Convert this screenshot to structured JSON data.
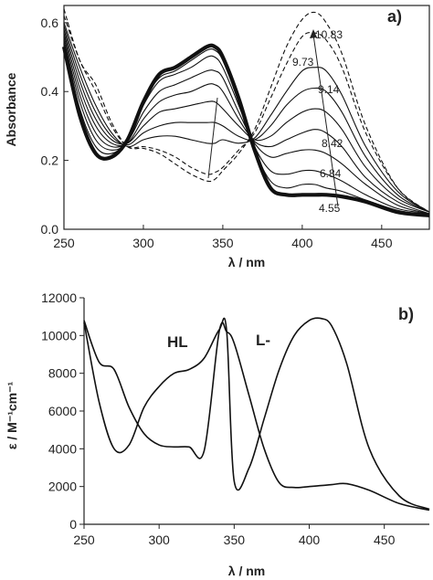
{
  "chart_data": [
    {
      "type": "line",
      "panel_label": "a)",
      "xlabel": "λ / nm",
      "ylabel": "Absorbance",
      "xlim": [
        250,
        480
      ],
      "ylim": [
        0,
        0.65
      ],
      "xticks": [
        "250",
        "300",
        "350",
        "400",
        "450"
      ],
      "yticks": [
        "0.0",
        "0.2",
        "0.4",
        "0.6"
      ],
      "annotations": [
        "10.83",
        "9.73",
        "9.14",
        "8.42",
        "6.84",
        "4.55"
      ],
      "x": [
        250,
        260,
        270,
        280,
        290,
        300,
        310,
        320,
        330,
        340,
        345,
        350,
        360,
        370,
        380,
        390,
        400,
        408,
        415,
        425,
        440,
        460,
        480
      ],
      "series": [
        {
          "name": "4.55",
          "values": [
            0.53,
            0.33,
            0.22,
            0.21,
            0.26,
            0.37,
            0.45,
            0.47,
            0.5,
            0.53,
            0.53,
            0.5,
            0.38,
            0.23,
            0.12,
            0.1,
            0.1,
            0.1,
            0.1,
            0.095,
            0.08,
            0.05,
            0.04
          ]
        },
        {
          "name": "",
          "values": [
            0.54,
            0.35,
            0.24,
            0.22,
            0.26,
            0.37,
            0.44,
            0.46,
            0.49,
            0.52,
            0.52,
            0.49,
            0.37,
            0.23,
            0.14,
            0.12,
            0.13,
            0.13,
            0.12,
            0.11,
            0.085,
            0.055,
            0.04
          ]
        },
        {
          "name": "6.84",
          "values": [
            0.55,
            0.37,
            0.26,
            0.23,
            0.255,
            0.36,
            0.43,
            0.45,
            0.47,
            0.5,
            0.5,
            0.47,
            0.36,
            0.24,
            0.17,
            0.16,
            0.17,
            0.17,
            0.16,
            0.14,
            0.1,
            0.06,
            0.045
          ]
        },
        {
          "name": "",
          "values": [
            0.56,
            0.39,
            0.28,
            0.24,
            0.255,
            0.34,
            0.4,
            0.42,
            0.44,
            0.46,
            0.46,
            0.44,
            0.34,
            0.25,
            0.21,
            0.22,
            0.23,
            0.23,
            0.22,
            0.19,
            0.13,
            0.07,
            0.045
          ]
        },
        {
          "name": "8.42",
          "values": [
            0.57,
            0.41,
            0.3,
            0.25,
            0.25,
            0.32,
            0.37,
            0.39,
            0.4,
            0.42,
            0.42,
            0.4,
            0.32,
            0.255,
            0.24,
            0.26,
            0.28,
            0.29,
            0.28,
            0.24,
            0.15,
            0.08,
            0.045
          ]
        },
        {
          "name": "",
          "values": [
            0.58,
            0.43,
            0.32,
            0.26,
            0.25,
            0.3,
            0.34,
            0.35,
            0.36,
            0.37,
            0.37,
            0.35,
            0.3,
            0.26,
            0.27,
            0.31,
            0.34,
            0.35,
            0.34,
            0.29,
            0.18,
            0.09,
            0.05
          ]
        },
        {
          "name": "",
          "values": [
            0.59,
            0.45,
            0.34,
            0.27,
            0.245,
            0.28,
            0.3,
            0.31,
            0.31,
            0.31,
            0.31,
            0.3,
            0.27,
            0.26,
            0.3,
            0.36,
            0.4,
            0.41,
            0.4,
            0.34,
            0.21,
            0.1,
            0.05
          ]
        },
        {
          "name": "9.14",
          "values": [
            0.6,
            0.47,
            0.36,
            0.28,
            0.24,
            0.26,
            0.27,
            0.27,
            0.26,
            0.25,
            0.25,
            0.26,
            0.25,
            0.265,
            0.33,
            0.4,
            0.46,
            0.47,
            0.46,
            0.39,
            0.24,
            0.11,
            0.05
          ]
        },
        {
          "name": "9.73",
          "values": [
            0.62,
            0.49,
            0.4,
            0.3,
            0.24,
            0.24,
            0.23,
            0.21,
            0.18,
            0.16,
            0.165,
            0.18,
            0.23,
            0.28,
            0.38,
            0.48,
            0.56,
            0.57,
            0.55,
            0.47,
            0.28,
            0.12,
            0.05
          ]
        },
        {
          "name": "10.83",
          "values": [
            0.64,
            0.49,
            0.42,
            0.31,
            0.24,
            0.235,
            0.22,
            0.19,
            0.16,
            0.14,
            0.145,
            0.17,
            0.22,
            0.29,
            0.41,
            0.53,
            0.61,
            0.63,
            0.6,
            0.51,
            0.3,
            0.12,
            0.05
          ]
        }
      ]
    },
    {
      "type": "line",
      "panel_label": "b)",
      "xlabel": "λ / nm",
      "ylabel": "ε / M⁻¹cm⁻¹",
      "xlim": [
        250,
        480
      ],
      "ylim": [
        0,
        12000
      ],
      "xticks": [
        "250",
        "300",
        "350",
        "400",
        "450"
      ],
      "yticks": [
        "0",
        "2000",
        "4000",
        "6000",
        "8000",
        "10000",
        "12000"
      ],
      "x": [
        250,
        260,
        270,
        280,
        290,
        300,
        310,
        320,
        330,
        340,
        345,
        350,
        360,
        370,
        380,
        390,
        400,
        408,
        415,
        425,
        440,
        460,
        480
      ],
      "series": [
        {
          "name": "HL",
          "values": [
            10800,
            8600,
            8200,
            6200,
            4800,
            4200,
            4100,
            4100,
            3900,
            10200,
            10200,
            9600,
            6800,
            4000,
            2200,
            1950,
            2000,
            2050,
            2100,
            2150,
            1800,
            1100,
            750
          ]
        },
        {
          "name": "L-",
          "values": [
            10700,
            6500,
            4000,
            4200,
            6200,
            7300,
            8000,
            8200,
            8800,
            10300,
            10250,
            2300,
            3000,
            5600,
            8200,
            10000,
            10800,
            10900,
            10500,
            8500,
            4000,
            1500,
            800
          ]
        }
      ]
    }
  ]
}
